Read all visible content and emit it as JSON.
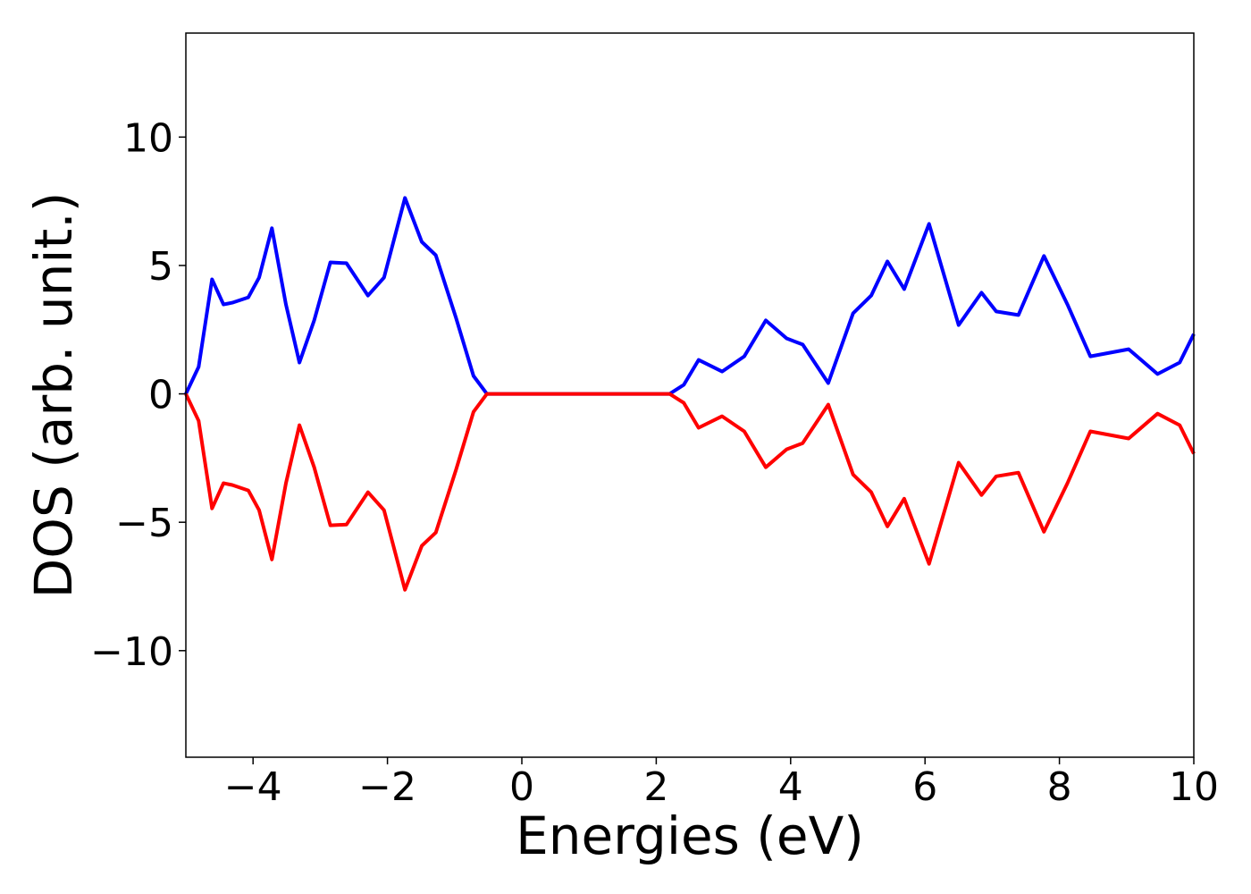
{
  "chart_data": {
    "type": "line",
    "xlabel": "Energies (eV)",
    "ylabel": "DOS (arb. unit.)",
    "x": [
      -5,
      -4.81,
      -4.61,
      -4.44,
      -4.31,
      -4.07,
      -3.91,
      -3.72,
      -3.51,
      -3.31,
      -3.09,
      -2.85,
      -2.61,
      -2.29,
      -2.05,
      -1.74,
      -1.49,
      -1.28,
      -0.98,
      -0.72,
      -0.52,
      2.2,
      2.41,
      2.63,
      2.98,
      3.31,
      3.63,
      3.94,
      4.18,
      4.56,
      4.93,
      5.2,
      5.44,
      5.69,
      6.06,
      6.5,
      6.84,
      7.06,
      7.39,
      7.77,
      8.12,
      8.46,
      9.03,
      9.46,
      9.79,
      10
    ],
    "series": [
      {
        "color": "#0000ff",
        "values": [
          0,
          1.05,
          4.46,
          3.48,
          3.55,
          3.76,
          4.53,
          6.45,
          3.48,
          1.22,
          2.86,
          5.12,
          5.09,
          3.83,
          4.53,
          7.63,
          5.92,
          5.4,
          2.96,
          0.7,
          0,
          0,
          0.35,
          1.32,
          0.87,
          1.46,
          2.86,
          2.16,
          1.92,
          0.42,
          3.14,
          3.83,
          5.16,
          4.08,
          6.62,
          2.68,
          3.94,
          3.21,
          3.07,
          5.37,
          3.48,
          1.46,
          1.74,
          0.77,
          1.22,
          2.33
        ]
      },
      {
        "color": "#ff0000",
        "values": [
          0,
          -1.05,
          -4.46,
          -3.48,
          -3.55,
          -3.76,
          -4.53,
          -6.45,
          -3.48,
          -1.22,
          -2.86,
          -5.12,
          -5.09,
          -3.83,
          -4.53,
          -7.63,
          -5.92,
          -5.4,
          -2.96,
          -0.7,
          0,
          0,
          -0.35,
          -1.32,
          -0.87,
          -1.46,
          -2.86,
          -2.16,
          -1.92,
          -0.42,
          -3.14,
          -3.83,
          -5.16,
          -4.08,
          -6.62,
          -2.68,
          -3.94,
          -3.21,
          -3.07,
          -5.37,
          -3.48,
          -1.46,
          -1.74,
          -0.77,
          -1.22,
          -2.33
        ]
      }
    ],
    "xlim": [
      -5,
      10
    ],
    "xticks": [
      {
        "value": -4,
        "label": "−4"
      },
      {
        "value": -2,
        "label": "−2"
      },
      0,
      2,
      4,
      6,
      8,
      10
    ],
    "ylim": [
      -14.15,
      14.05
    ],
    "yticks": [
      {
        "value": -10,
        "label": "−10"
      },
      {
        "value": -5,
        "label": "−5"
      },
      0,
      5,
      10
    ]
  }
}
